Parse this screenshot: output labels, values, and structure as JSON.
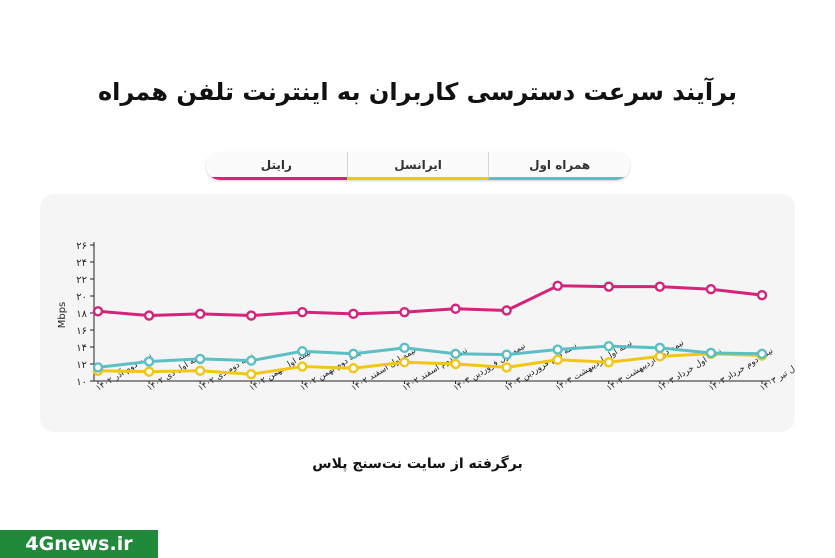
{
  "title": "برآیند سرعت دسترسی کاربران به اینترنت تلفن همراه",
  "source": "برگرفته از سایت نت‌سنج پلاس",
  "watermark": "4Gnews.ir",
  "chart_data": {
    "type": "line",
    "title": "برآیند سرعت دسترسی کاربران به اینترنت تلفن همراه",
    "ylabel": "Mbps",
    "xlabel": "",
    "ylim": [
      10,
      26
    ],
    "yticks": [
      "۱۰",
      "۱۲",
      "۱۴",
      "۱۶",
      "۱۸",
      "۲۰",
      "۲۲",
      "۲۴",
      "۲۶"
    ],
    "categories": [
      "نیمه دوم آذر ۱۴۰۲",
      "نیمه اول دی ۱۴۰۲",
      "نیمه دوم دی ۱۴۰۲",
      "نیمه اول بهمن ۱۴۰۲",
      "نیمه دوم بهمن ۱۴۰۲",
      "نیمه اول اسفند ۱۴۰۲",
      "نیمه دوم اسفند ۱۴۰۲",
      "نیمه اول فروردین ۱۴۰۳",
      "نیمه دوم فروردین ۱۴۰۳",
      "نیمه اول اردیبهشت ۱۴۰۳",
      "نیمه دوم اردیبهشت ۱۴۰۳",
      "نیمه اول خرداد ۱۴۰۳",
      "نیمه دوم خرداد ۱۴۰۳",
      "نیمه اول تیر ۱۴۰۳"
    ],
    "series": [
      {
        "name": "رایتل",
        "color": "#d6237a",
        "values": [
          18.2,
          17.7,
          17.9,
          17.7,
          18.1,
          17.9,
          18.1,
          18.5,
          18.3,
          21.2,
          21.1,
          21.1,
          20.8,
          20.1
        ]
      },
      {
        "name": "ایرانسل",
        "color": "#f2c614",
        "values": [
          11.2,
          11.1,
          11.2,
          10.8,
          11.7,
          11.5,
          12.2,
          12.0,
          11.6,
          12.5,
          12.2,
          12.9,
          13.2,
          13.0
        ]
      },
      {
        "name": "همراه اول",
        "color": "#5bbfc4",
        "values": [
          11.6,
          12.3,
          12.6,
          12.4,
          13.5,
          13.2,
          13.9,
          13.2,
          13.1,
          13.7,
          14.1,
          13.9,
          13.3,
          13.2
        ]
      }
    ],
    "legend": "top-center",
    "grid": false
  }
}
